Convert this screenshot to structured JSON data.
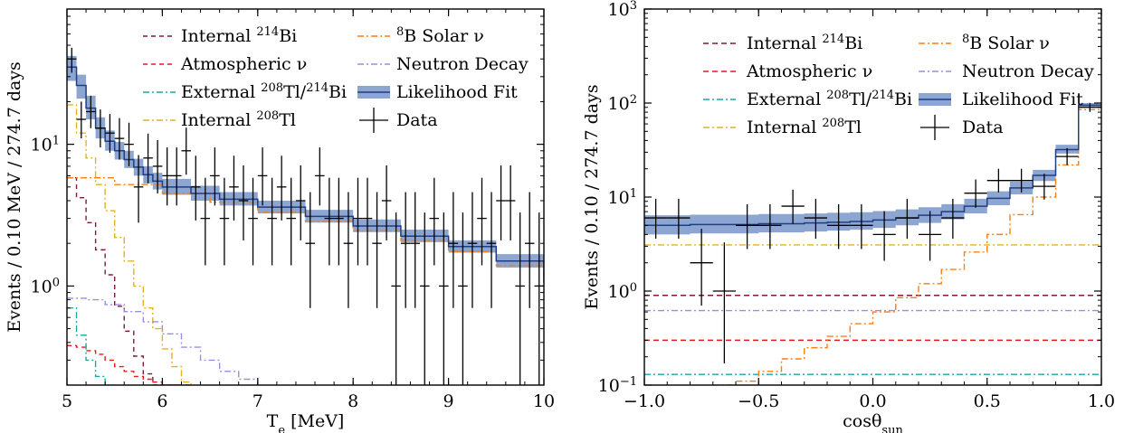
{
  "chart_data": [
    {
      "type": "line",
      "xlabel": "T",
      "xlabel_sub": "e",
      "xlabel_unit": " [MeV]",
      "ylabel": "Events / 0.10 MeV / 274.7 days",
      "xlim": [
        5,
        10
      ],
      "ylim": [
        0.2,
        90
      ],
      "yscale": "log",
      "x_ticks": [
        5,
        6,
        7,
        8,
        9,
        10
      ],
      "x_tick_labels": [
        "5",
        "6",
        "7",
        "8",
        "9",
        "10"
      ],
      "y_ticks": [
        1,
        10
      ],
      "y_tick_base": "10",
      "y_tick_exps": [
        "0",
        "1"
      ],
      "legend_placement": "top",
      "series": [
        {
          "name": "Internal ",
          "sup": "214",
          "suffix": "Bi",
          "color": "#7b1a3a",
          "dash": "5,4",
          "x": [
            5.0,
            5.1,
            5.2,
            5.3,
            5.4,
            5.5,
            5.6,
            5.7,
            5.8,
            5.9,
            6.0,
            6.1,
            6.2,
            6.3
          ],
          "y": [
            5.8,
            4.2,
            2.8,
            1.8,
            1.2,
            0.72,
            0.48,
            0.32,
            0.24,
            0.2,
            0.2,
            0.2,
            0.2,
            0.2
          ]
        },
        {
          "name": "Atmospheric ν",
          "color": "#e41a1c",
          "dash": "5,4",
          "x": [
            5.0,
            5.1,
            5.2,
            5.3,
            5.4,
            5.5,
            5.6,
            5.7,
            5.8,
            5.9,
            6.0,
            6.1,
            6.2
          ],
          "y": [
            0.38,
            0.37,
            0.35,
            0.33,
            0.3,
            0.27,
            0.25,
            0.23,
            0.22,
            0.21,
            0.2,
            0.2,
            0.2
          ]
        },
        {
          "name": "External ",
          "sup": "208",
          "mid": "Tl/",
          "sup2": "214",
          "suffix": "Bi",
          "color": "#1aa8a0",
          "dash": "7,3,2,3",
          "x": [
            5.0,
            5.1,
            5.2,
            5.3,
            5.4,
            5.5
          ],
          "y": [
            0.7,
            0.45,
            0.3,
            0.23,
            0.2,
            0.2
          ]
        },
        {
          "name": "Internal ",
          "sup": "208",
          "suffix": "Tl",
          "color": "#e6b020",
          "dash": "7,3,2,3",
          "x": [
            5.0,
            5.1,
            5.2,
            5.3,
            5.4,
            5.5,
            5.6,
            5.7,
            5.8,
            5.9,
            6.0,
            6.1,
            6.2,
            6.3
          ],
          "y": [
            19,
            12,
            8,
            5.2,
            3.4,
            2.2,
            1.5,
            1.0,
            0.7,
            0.5,
            0.36,
            0.27,
            0.21,
            0.2
          ]
        },
        {
          "name": "B Solar ν",
          "sup": "8",
          "color": "#ff7f0e",
          "dash": "7,3,2,3",
          "x": [
            5.0,
            5.5,
            6.0,
            6.5,
            7.0,
            7.5,
            8.0,
            8.5,
            9.0,
            9.5,
            10.0
          ],
          "y": [
            5.8,
            5.2,
            4.5,
            3.9,
            3.3,
            2.85,
            2.45,
            2.1,
            1.75,
            1.4,
            1.05
          ]
        },
        {
          "name": "Neutron Decay",
          "color": "#9a8de8",
          "dash": "7,3,2,3",
          "x": [
            5.0,
            5.2,
            5.4,
            5.6,
            5.8,
            6.0,
            6.2,
            6.4,
            6.6,
            6.8,
            7.0
          ],
          "y": [
            0.82,
            0.8,
            0.74,
            0.66,
            0.56,
            0.46,
            0.37,
            0.3,
            0.25,
            0.22,
            0.2
          ]
        },
        {
          "name": "Likelihood Fit",
          "color": "#1f3f82",
          "dash": "",
          "x": [
            5.0,
            5.1,
            5.2,
            5.3,
            5.4,
            5.5,
            5.6,
            5.7,
            5.8,
            5.9,
            6.0,
            6.3,
            6.6,
            7.0,
            7.5,
            8.0,
            8.5,
            9.0,
            9.5,
            10.0
          ],
          "y": [
            35,
            26,
            18,
            13,
            10.5,
            9.0,
            7.8,
            6.9,
            6.1,
            5.5,
            5.0,
            4.5,
            4.1,
            3.6,
            3.1,
            2.65,
            2.25,
            1.9,
            1.5,
            1.05
          ],
          "band": [
            [
              28,
              42
            ],
            [
              21,
              31
            ],
            [
              15,
              22
            ],
            [
              11,
              15.5
            ],
            [
              9,
              12.5
            ],
            [
              7.8,
              10.4
            ],
            [
              6.8,
              9.0
            ],
            [
              6.0,
              7.9
            ],
            [
              5.3,
              7.0
            ],
            [
              4.8,
              6.3
            ],
            [
              4.4,
              5.7
            ],
            [
              4.0,
              5.1
            ],
            [
              3.7,
              4.6
            ],
            [
              3.25,
              4.0
            ],
            [
              2.8,
              3.45
            ],
            [
              2.4,
              2.95
            ],
            [
              2.04,
              2.5
            ],
            [
              1.72,
              2.1
            ],
            [
              1.35,
              1.68
            ],
            [
              0.95,
              1.17
            ]
          ]
        },
        {
          "name": "Data",
          "color": "#000000",
          "errorbar": true,
          "x": [
            5.05,
            5.15,
            5.25,
            5.35,
            5.45,
            5.55,
            5.65,
            5.75,
            5.85,
            5.95,
            6.05,
            6.15,
            6.25,
            6.35,
            6.45,
            6.55,
            6.65,
            6.75,
            6.85,
            6.95,
            7.05,
            7.15,
            7.25,
            7.35,
            7.45,
            7.55,
            7.65,
            7.75,
            7.85,
            7.95,
            8.05,
            8.15,
            8.25,
            8.35,
            8.45,
            8.55,
            8.65,
            8.75,
            8.85,
            8.95,
            9.05,
            9.15,
            9.25,
            9.35,
            9.45,
            9.55,
            9.65,
            9.75,
            9.85,
            9.95
          ],
          "y": [
            40,
            15,
            17,
            13,
            12,
            11,
            10,
            5,
            8,
            7,
            6,
            6,
            9,
            5,
            3,
            6,
            3,
            5,
            4,
            3,
            6,
            3,
            5,
            3,
            4,
            2,
            6,
            3,
            3,
            2,
            3,
            3,
            2,
            4,
            1,
            2,
            2,
            1,
            3,
            1,
            2,
            1,
            2,
            3,
            2,
            4,
            4,
            1,
            2,
            1
          ],
          "yerr_lo": [
            8,
            4,
            4,
            3.5,
            3.3,
            3.2,
            3,
            2.2,
            2.7,
            2.5,
            2.3,
            2.3,
            2.9,
            2.1,
            1.6,
            2.3,
            1.6,
            2.1,
            1.9,
            1.6,
            2.3,
            1.6,
            2.1,
            1.6,
            1.9,
            1.3,
            2.3,
            1.6,
            1.6,
            1.3,
            1.6,
            1.6,
            1.3,
            1.9,
            0.83,
            1.3,
            1.3,
            0.83,
            1.6,
            0.83,
            1.3,
            0.83,
            1.3,
            1.6,
            1.3,
            1.9,
            1.9,
            0.83,
            1.3,
            0.83
          ],
          "yerr_hi": [
            8,
            5,
            5,
            4.6,
            4.4,
            4.3,
            4.2,
            3.4,
            3.9,
            3.7,
            3.5,
            3.5,
            4.1,
            3.3,
            2.8,
            3.5,
            2.8,
            3.3,
            3.1,
            2.8,
            3.5,
            2.8,
            3.3,
            2.8,
            3.1,
            2.6,
            3.5,
            2.8,
            2.8,
            2.6,
            2.8,
            2.8,
            2.6,
            3.1,
            2.3,
            2.6,
            2.6,
            2.3,
            2.8,
            2.3,
            2.6,
            2.3,
            2.6,
            2.8,
            2.6,
            3.1,
            3.1,
            2.3,
            2.6,
            2.3
          ]
        }
      ]
    },
    {
      "type": "line",
      "xlabel": "cosθ",
      "xlabel_sub": "sun",
      "ylabel": "Events / 0.10 / 274.7 days",
      "xlim": [
        -1.0,
        1.0
      ],
      "ylim": [
        0.1,
        1000
      ],
      "yscale": "log",
      "x_ticks": [
        -1.0,
        -0.5,
        0.0,
        0.5,
        1.0
      ],
      "x_tick_labels": [
        "−1.0",
        "−0.5",
        "0.0",
        "0.5",
        "1.0"
      ],
      "y_ticks": [
        0.1,
        1,
        10,
        100,
        1000
      ],
      "y_tick_base": "10",
      "y_tick_exps": [
        "−1",
        "0",
        "1",
        "2",
        "3"
      ],
      "legend_placement": "top",
      "series": [
        {
          "name": "Internal ",
          "sup": "214",
          "suffix": "Bi",
          "color": "#7b1a3a",
          "dash": "6,4",
          "x": [
            -1.0,
            1.0
          ],
          "y": [
            0.9,
            0.9
          ]
        },
        {
          "name": "Atmospheric ν",
          "color": "#e41a1c",
          "dash": "6,4",
          "x": [
            -1.0,
            1.0
          ],
          "y": [
            0.3,
            0.3
          ]
        },
        {
          "name": "External ",
          "sup": "208",
          "mid": "Tl/",
          "sup2": "214",
          "suffix": "Bi",
          "color": "#1aa8a0",
          "dash": "7,3,2,3",
          "x": [
            -1.0,
            1.0
          ],
          "y": [
            0.13,
            0.13
          ]
        },
        {
          "name": "Internal ",
          "sup": "208",
          "suffix": "Tl",
          "color": "#e6b020",
          "dash": "7,3,2,3",
          "x": [
            -1.0,
            1.0
          ],
          "y": [
            3.1,
            3.1
          ]
        },
        {
          "name": "B Solar ν",
          "sup": "8",
          "color": "#ff7f0e",
          "dash": "7,3,2,3",
          "x": [
            -0.7,
            -0.6,
            -0.5,
            -0.4,
            -0.3,
            -0.2,
            -0.1,
            0.0,
            0.1,
            0.2,
            0.3,
            0.4,
            0.5,
            0.6,
            0.7,
            0.8,
            0.9,
            1.0
          ],
          "y": [
            0.1,
            0.11,
            0.14,
            0.19,
            0.25,
            0.33,
            0.45,
            0.6,
            0.85,
            1.2,
            1.7,
            2.6,
            4.0,
            6.5,
            10,
            22,
            85,
            85
          ]
        },
        {
          "name": "Neutron Decay",
          "color": "#9a8de8",
          "dash": "7,3,2,3",
          "x": [
            -1.0,
            1.0
          ],
          "y": [
            0.62,
            0.62
          ]
        },
        {
          "name": "Likelihood Fit",
          "color": "#1f3f82",
          "dash": "",
          "x": [
            -1.0,
            -0.9,
            -0.8,
            -0.7,
            -0.6,
            -0.5,
            -0.4,
            -0.3,
            -0.2,
            -0.1,
            0.0,
            0.1,
            0.2,
            0.3,
            0.4,
            0.5,
            0.6,
            0.7,
            0.8,
            0.9,
            1.0
          ],
          "y": [
            5.0,
            5.0,
            5.1,
            5.1,
            5.1,
            5.2,
            5.2,
            5.3,
            5.4,
            5.5,
            5.7,
            6.0,
            6.4,
            7.0,
            8.0,
            9.7,
            12.5,
            17,
            32,
            95,
            95
          ],
          "band": [
            [
              4.0,
              6.4
            ],
            [
              4.0,
              6.4
            ],
            [
              4.1,
              6.5
            ],
            [
              4.1,
              6.5
            ],
            [
              4.1,
              6.5
            ],
            [
              4.2,
              6.6
            ],
            [
              4.2,
              6.6
            ],
            [
              4.3,
              6.7
            ],
            [
              4.4,
              6.8
            ],
            [
              4.5,
              6.9
            ],
            [
              4.7,
              7.1
            ],
            [
              5.0,
              7.4
            ],
            [
              5.3,
              7.8
            ],
            [
              5.8,
              8.4
            ],
            [
              6.7,
              9.6
            ],
            [
              8.2,
              11.5
            ],
            [
              10.7,
              14.6
            ],
            [
              14.8,
              19.5
            ],
            [
              29,
              36
            ],
            [
              90,
              100
            ],
            [
              90,
              100
            ]
          ]
        },
        {
          "name": "Data",
          "color": "#000000",
          "errorbar": true,
          "x": [
            -0.95,
            -0.85,
            -0.75,
            -0.65,
            -0.55,
            -0.45,
            -0.35,
            -0.25,
            -0.15,
            -0.05,
            0.05,
            0.15,
            0.25,
            0.35,
            0.45,
            0.55,
            0.65,
            0.75,
            0.85,
            0.95
          ],
          "y": [
            6,
            6,
            2,
            1,
            5,
            5,
            8,
            6,
            5,
            5,
            4,
            6,
            4,
            6,
            11,
            15,
            15,
            13,
            27,
            90
          ],
          "yerr_lo": [
            2.4,
            2.4,
            1.3,
            0.83,
            2.2,
            2.2,
            2.8,
            2.4,
            2.2,
            2.2,
            1.9,
            2.4,
            1.9,
            2.4,
            3.3,
            3.8,
            3.8,
            3.6,
            5.1,
            9.5
          ],
          "yerr_hi": [
            3.6,
            3.6,
            2.6,
            2.3,
            3.4,
            3.4,
            4.0,
            3.6,
            3.4,
            3.4,
            3.1,
            3.6,
            3.1,
            3.6,
            4.4,
            5.0,
            5.0,
            4.7,
            6.2,
            10.5
          ]
        }
      ]
    }
  ]
}
